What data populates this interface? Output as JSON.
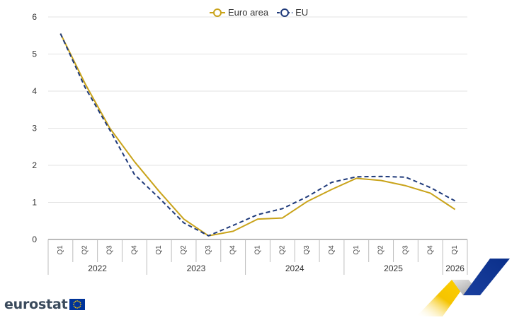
{
  "chart_data": {
    "type": "line",
    "categories": [
      "Q1",
      "Q2",
      "Q3",
      "Q4",
      "Q1",
      "Q2",
      "Q3",
      "Q4",
      "Q1",
      "Q2",
      "Q3",
      "Q4",
      "Q1",
      "Q2",
      "Q3",
      "Q4",
      "Q1"
    ],
    "years": [
      {
        "label": "2022",
        "quarters": 4
      },
      {
        "label": "2023",
        "quarters": 4
      },
      {
        "label": "2024",
        "quarters": 4
      },
      {
        "label": "2025",
        "quarters": 4
      },
      {
        "label": "2026",
        "quarters": 1
      }
    ],
    "yticks": [
      "0",
      "1",
      "2",
      "3",
      "4",
      "5",
      "6"
    ],
    "ylim": [
      0,
      6
    ],
    "grid": true,
    "legend_position": "top-center",
    "series": [
      {
        "name": "Euro area",
        "color": "#c9a31a",
        "dash": "solid",
        "values": [
          5.55,
          4.2,
          3.0,
          2.1,
          1.3,
          0.55,
          0.1,
          0.22,
          0.55,
          0.58,
          1.02,
          1.35,
          1.65,
          1.59,
          1.45,
          1.25,
          0.81
        ]
      },
      {
        "name": "EU",
        "color": "#1f3a7a",
        "dash": "dashed",
        "values": [
          5.55,
          4.1,
          2.95,
          1.75,
          1.12,
          0.45,
          0.1,
          0.38,
          0.67,
          0.83,
          1.15,
          1.54,
          1.69,
          1.7,
          1.68,
          1.4,
          1.04
        ]
      }
    ]
  },
  "branding": {
    "logo_text": "eurostat",
    "flag_color": "#003399",
    "star_color": "#ffcc00"
  }
}
